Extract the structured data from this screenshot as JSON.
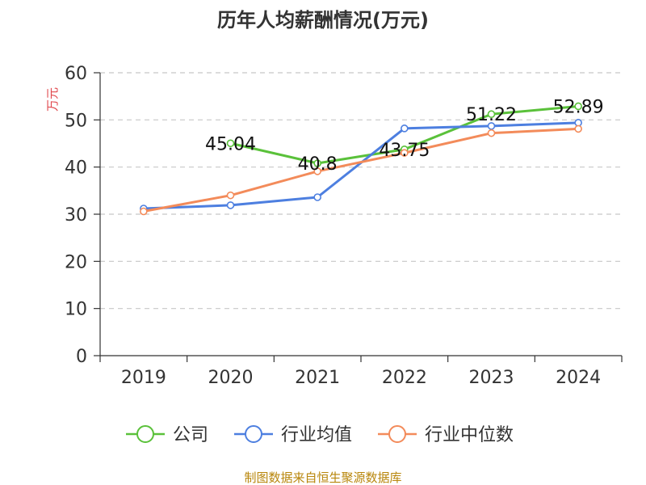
{
  "chart_data": {
    "type": "line",
    "title": "历年人均薪酬情况(万元)",
    "ylabel": "万元",
    "xlabel": "",
    "ylim": [
      0,
      60
    ],
    "yticks": [
      0,
      10,
      20,
      30,
      40,
      50,
      60
    ],
    "categories": [
      "2019",
      "2020",
      "2021",
      "2022",
      "2023",
      "2024"
    ],
    "grid": true,
    "legend_position": "bottom",
    "series": [
      {
        "name": "公司",
        "color": "#5ac13a",
        "values": [
          null,
          45.04,
          40.8,
          43.75,
          51.22,
          52.89
        ],
        "labels": [
          null,
          "45.04",
          "40.8",
          "43.75",
          "51.22",
          "52.89"
        ]
      },
      {
        "name": "行业均值",
        "color": "#4d7fe0",
        "values": [
          31.2,
          31.9,
          33.6,
          48.2,
          48.7,
          49.4
        ]
      },
      {
        "name": "行业中位数",
        "color": "#f38b5a",
        "values": [
          30.6,
          34.0,
          39.1,
          43.0,
          47.2,
          48.1
        ]
      }
    ]
  },
  "source": "制图数据来自恒生聚源数据库"
}
